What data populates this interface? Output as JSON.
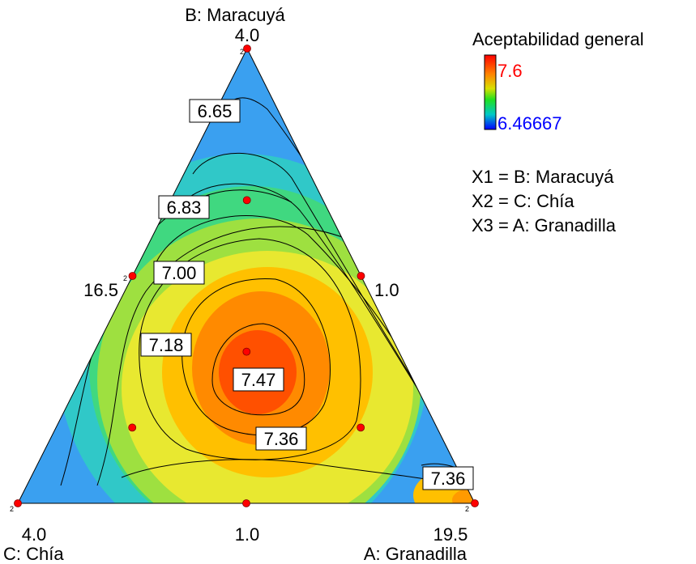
{
  "chart_data": {
    "type": "ternary-contour",
    "response_name": "Aceptabilidad general",
    "vertices": [
      {
        "name": "B: Maracuyá",
        "value": "4.0"
      },
      {
        "name": "C: Chía",
        "value": "4.0"
      },
      {
        "name": "A: Granadilla",
        "value": "19.5"
      }
    ],
    "edge_ticks": {
      "left": "16.5",
      "right": "1.0",
      "bottom": "1.0"
    },
    "legend": {
      "max_label": "7.6",
      "min_label": "6.46667",
      "max_color": "#ff0000",
      "min_color": "#0000ff"
    },
    "mapping": [
      "X1 = B: Maracuyá",
      "X2 = C: Chía",
      "X3 = A: Granadilla"
    ],
    "contour_labels": [
      {
        "value": "6.65"
      },
      {
        "value": "6.83"
      },
      {
        "value": "7.00"
      },
      {
        "value": "7.18"
      },
      {
        "value": "7.47"
      },
      {
        "value": "7.36"
      },
      {
        "value": "7.36"
      }
    ],
    "design_points": [
      {
        "b": 1.0,
        "c": 0.0,
        "a": 0.0,
        "replicates": "2"
      },
      {
        "b": 0.0,
        "c": 1.0,
        "a": 0.0,
        "replicates": "2"
      },
      {
        "b": 0.0,
        "c": 0.0,
        "a": 1.0,
        "replicates": "2"
      },
      {
        "b": 0.5,
        "c": 0.5,
        "a": 0.0,
        "replicates": "2"
      },
      {
        "b": 0.5,
        "c": 0.0,
        "a": 0.5
      },
      {
        "b": 0.0,
        "c": 0.5,
        "a": 0.5
      },
      {
        "b": 0.6667,
        "c": 0.1667,
        "a": 0.1667
      },
      {
        "b": 0.1667,
        "c": 0.6667,
        "a": 0.1667
      },
      {
        "b": 0.1667,
        "c": 0.1667,
        "a": 0.6667
      },
      {
        "b": 0.3333,
        "c": 0.3333,
        "a": 0.3333
      }
    ],
    "colors": {
      "low": "#0000ff",
      "high": "#ff0000",
      "point": "#ff0000"
    }
  }
}
